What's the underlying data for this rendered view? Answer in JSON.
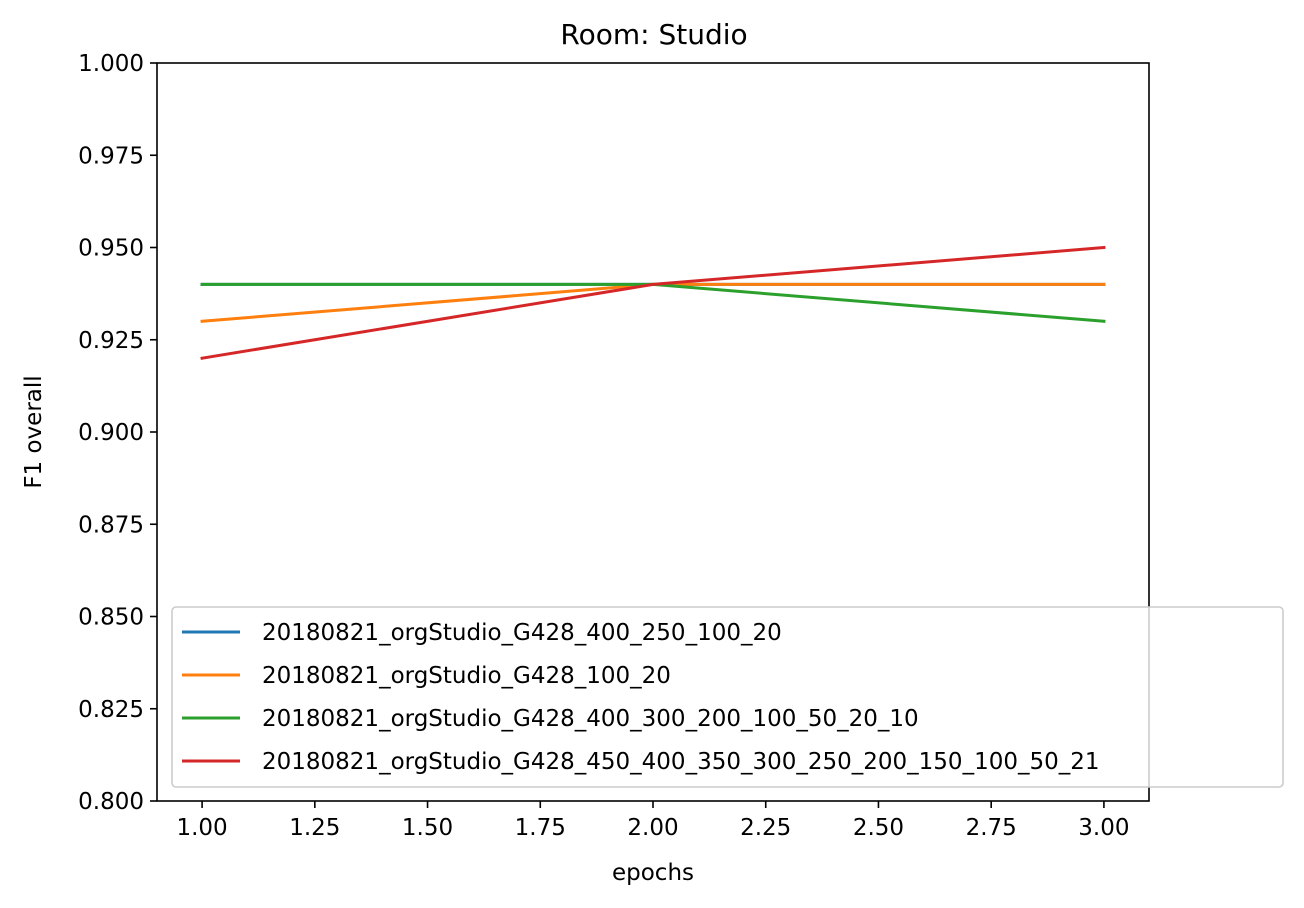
{
  "chart_data": {
    "type": "line",
    "title": "Room: Studio",
    "xlabel": "epochs",
    "ylabel": "F1 overall",
    "xlim": [
      0.9,
      3.1
    ],
    "ylim": [
      0.8,
      1.0
    ],
    "xticks": [
      1.0,
      1.25,
      1.5,
      1.75,
      2.0,
      2.25,
      2.5,
      2.75,
      3.0
    ],
    "xtick_labels": [
      "1.00",
      "1.25",
      "1.50",
      "1.75",
      "2.00",
      "2.25",
      "2.50",
      "2.75",
      "3.00"
    ],
    "yticks": [
      0.8,
      0.825,
      0.85,
      0.875,
      0.9,
      0.925,
      0.95,
      0.975,
      1.0
    ],
    "ytick_labels": [
      "0.800",
      "0.825",
      "0.850",
      "0.875",
      "0.900",
      "0.925",
      "0.950",
      "0.975",
      "1.000"
    ],
    "grid": false,
    "legend_position": "lower-right",
    "x": [
      1,
      2,
      3
    ],
    "series": [
      {
        "name": "20180821_orgStudio_G428_400_250_100_20",
        "color": "#1f77b4",
        "values": [
          0.94,
          0.94,
          0.94
        ]
      },
      {
        "name": "20180821_orgStudio_G428_100_20",
        "color": "#ff7f0e",
        "values": [
          0.93,
          0.94,
          0.94
        ]
      },
      {
        "name": "20180821_orgStudio_G428_400_300_200_100_50_20_10",
        "color": "#2ca02c",
        "values": [
          0.94,
          0.94,
          0.93
        ]
      },
      {
        "name": "20180821_orgStudio_G428_450_400_350_300_250_200_150_100_50_21",
        "color": "#d62728",
        "values": [
          0.92,
          0.94,
          0.95
        ]
      }
    ]
  }
}
